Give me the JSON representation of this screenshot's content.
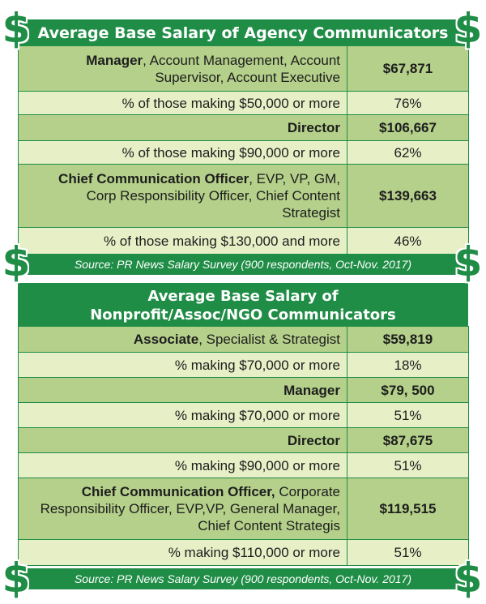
{
  "panel1": {
    "title": "Average Base Salary of Agency Communicators",
    "rows": [
      {
        "shade": "dark",
        "label_bold": "Manager",
        "label_rest": ", Account Management, Account Supervisor, Account Executive",
        "value": "$67,871",
        "value_bold": true
      },
      {
        "shade": "light",
        "label_bold": "",
        "label_rest": "% of those making $50,000 or more",
        "value": "76%",
        "value_bold": false
      },
      {
        "shade": "dark",
        "label_bold": "Director",
        "label_rest": "",
        "value": "$106,667",
        "value_bold": true
      },
      {
        "shade": "light",
        "label_bold": "",
        "label_rest": "% of those making $90,000 or more",
        "value": "62%",
        "value_bold": false
      },
      {
        "shade": "dark",
        "label_bold": "Chief Communication Officer",
        "label_rest": ", EVP, VP, GM, Corp Responsibility Officer, Chief Content Strategist",
        "value": "$139,663",
        "value_bold": true
      },
      {
        "shade": "light",
        "label_bold": "",
        "label_rest": "% of those making $130,000 and more",
        "value": "46%",
        "value_bold": false
      }
    ],
    "source": "Source: PR News Salary Survey (900 respondents, Oct-Nov. 2017)"
  },
  "panel2": {
    "title_line1": "Average Base Salary of",
    "title_line2": "Nonprofit/Assoc/NGO Communicators",
    "rows": [
      {
        "shade": "dark",
        "label_bold": "Associate",
        "label_rest": ", Specialist & Strategist",
        "value": "$59,819",
        "value_bold": true
      },
      {
        "shade": "light",
        "label_bold": "",
        "label_rest": "% making $70,000 or more",
        "value": "18%",
        "value_bold": false
      },
      {
        "shade": "dark",
        "label_bold": "Manager",
        "label_rest": "",
        "value": "$79, 500",
        "value_bold": true
      },
      {
        "shade": "light",
        "label_bold": "",
        "label_rest": "% making $70,000 or more",
        "value": "51%",
        "value_bold": false
      },
      {
        "shade": "dark",
        "label_bold": "Director",
        "label_rest": "",
        "value": "$87,675",
        "value_bold": true
      },
      {
        "shade": "light",
        "label_bold": "",
        "label_rest": "% making $90,000 or more",
        "value": "51%",
        "value_bold": false
      },
      {
        "shade": "dark",
        "label_bold": "Chief Communication Officer,",
        "label_rest": " Corporate Responsibility Officer, EVP,VP, General Manager, Chief Content Strategis",
        "value": "$119,515",
        "value_bold": true
      },
      {
        "shade": "light",
        "label_bold": "",
        "label_rest": "% making $110,000 or more",
        "value": "51%",
        "value_bold": false
      }
    ],
    "source": "Source: PR News Salary Survey (900 respondents, Oct-Nov. 2017)"
  },
  "dollar_symbol": "$",
  "colors": {
    "green": "#1f8d46",
    "dark_row": "#b4d08a",
    "light_row": "#e6efc6"
  }
}
